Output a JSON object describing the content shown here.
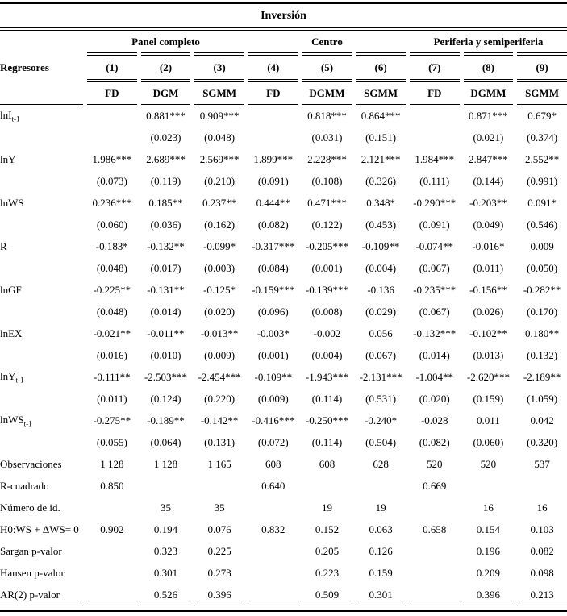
{
  "table": {
    "title": "Inversión",
    "regressors_label": "Regresores",
    "groups": [
      {
        "label": "Panel completo"
      },
      {
        "label": "Centro"
      },
      {
        "label": "Periferia y semiperiferia"
      }
    ],
    "column_numbers": [
      "(1)",
      "(2)",
      "(3)",
      "(4)",
      "(5)",
      "(6)",
      "(7)",
      "(8)",
      "(9)"
    ],
    "methods": [
      "FD",
      "DGM",
      "SGMM",
      "FD",
      "DGMM",
      "SGMM",
      "FD",
      "DGMM",
      "SGMM"
    ],
    "rows": [
      {
        "label": "lnI",
        "sub": "t-1",
        "type": "coef",
        "values": [
          "",
          "0.881***",
          "0.909***",
          "",
          "0.818***",
          "0.864***",
          "",
          "0.871***",
          "0.679*"
        ]
      },
      {
        "label": "",
        "sub": "",
        "type": "se",
        "values": [
          "",
          "(0.023)",
          "(0.048)",
          "",
          "(0.031)",
          "(0.151)",
          "",
          "(0.021)",
          "(0.374)"
        ]
      },
      {
        "label": "lnY",
        "sub": "",
        "type": "coef",
        "values": [
          "1.986***",
          "2.689***",
          "2.569***",
          "1.899***",
          "2.228***",
          "2.121***",
          "1.984***",
          "2.847***",
          "2.552**"
        ]
      },
      {
        "label": "",
        "sub": "",
        "type": "se",
        "values": [
          "(0.073)",
          "(0.119)",
          "(0.210)",
          "(0.091)",
          "(0.108)",
          "(0.326)",
          "(0.111)",
          "(0.144)",
          "(0.991)"
        ]
      },
      {
        "label": "lnWS",
        "sub": "",
        "type": "coef",
        "values": [
          "0.236***",
          "0.185**",
          "0.237**",
          "0.444**",
          "0.471***",
          "0.348*",
          "-0.290***",
          "-0.203**",
          "0.091*"
        ]
      },
      {
        "label": "",
        "sub": "",
        "type": "se",
        "values": [
          "(0.060)",
          "(0.036)",
          "(0.162)",
          "(0.082)",
          "(0.122)",
          "(0.453)",
          "(0.091)",
          "(0.049)",
          "(0.546)"
        ]
      },
      {
        "label": "R",
        "sub": "",
        "type": "coef",
        "values": [
          "-0.183*",
          "-0.132**",
          "-0.099*",
          "-0.317***",
          "-0.205***",
          "-0.109**",
          "-0.074**",
          "-0.016*",
          "0.009"
        ]
      },
      {
        "label": "",
        "sub": "",
        "type": "se",
        "values": [
          "(0.048)",
          "(0.017)",
          "(0.003)",
          "(0.084)",
          "(0.001)",
          "(0.004)",
          "(0.067)",
          "(0.011)",
          "(0.050)"
        ]
      },
      {
        "label": "lnGF",
        "sub": "",
        "type": "coef",
        "values": [
          "-0.225**",
          "-0.131**",
          "-0.125*",
          "-0.159***",
          "-0.139***",
          "-0.136",
          "-0.235***",
          "-0.156**",
          "-0.282**"
        ]
      },
      {
        "label": "",
        "sub": "",
        "type": "se",
        "values": [
          "(0.048)",
          "(0.014)",
          "(0.020)",
          "(0.096)",
          "(0.008)",
          "(0.029)",
          "(0.067)",
          "(0.026)",
          "(0.170)"
        ]
      },
      {
        "label": "lnEX",
        "sub": "",
        "type": "coef",
        "values": [
          "-0.021**",
          "-0.011**",
          "-0.013**",
          "-0.003*",
          "-0.002",
          "0.056",
          "-0.132***",
          "-0.102**",
          "0.180**"
        ]
      },
      {
        "label": "",
        "sub": "",
        "type": "se",
        "values": [
          "(0.016)",
          "(0.010)",
          "(0.009)",
          "(0.001)",
          "(0.004)",
          "(0.067)",
          "(0.014)",
          "(0.013)",
          "(0.132)"
        ]
      },
      {
        "label": "lnY",
        "sub": "t-1",
        "type": "coef",
        "values": [
          "-0.111**",
          "-2.503***",
          "-2.454***",
          "-0.109**",
          "-1.943***",
          "-2.131***",
          "-1.004**",
          "-2.620***",
          "-2.189**"
        ]
      },
      {
        "label": "",
        "sub": "",
        "type": "se",
        "values": [
          "(0.011)",
          "(0.124)",
          "(0.220)",
          "(0.009)",
          "(0.114)",
          "(0.531)",
          "(0.020)",
          "(0.159)",
          "(1.059)"
        ]
      },
      {
        "label": "lnWS",
        "sub": "t-1",
        "type": "coef",
        "values": [
          "-0.275**",
          "-0.189**",
          "-0.142**",
          "-0.416***",
          "-0.250***",
          "-0.240*",
          "-0.028",
          "0.011",
          "0.042"
        ]
      },
      {
        "label": "",
        "sub": "",
        "type": "se",
        "values": [
          "(0.055)",
          "(0.064)",
          "(0.131)",
          "(0.072)",
          "(0.114)",
          "(0.504)",
          "(0.082)",
          "(0.060)",
          "(0.320)"
        ]
      },
      {
        "label": "Observaciones",
        "sub": "",
        "type": "stat",
        "values": [
          "1 128",
          "1 128",
          "1 165",
          "608",
          "608",
          "628",
          "520",
          "520",
          "537"
        ]
      },
      {
        "label": "R-cuadrado",
        "sub": "",
        "type": "stat",
        "values": [
          "0.850",
          "",
          "",
          "0.640",
          "",
          "",
          "0.669",
          "",
          ""
        ]
      },
      {
        "label": "Número de id.",
        "sub": "",
        "type": "stat",
        "values": [
          "",
          "35",
          "35",
          "",
          "19",
          "19",
          "",
          "16",
          "16"
        ]
      },
      {
        "label": "H0:WS + ΔWS= 0",
        "sub": "",
        "type": "stat",
        "values": [
          "0.902",
          "0.194",
          "0.076",
          "0.832",
          "0.152",
          "0.063",
          "0.658",
          "0.154",
          "0.103"
        ]
      },
      {
        "label": "Sargan p-valor",
        "sub": "",
        "type": "stat",
        "values": [
          "",
          "0.323",
          "0.225",
          "",
          "0.205",
          "0.126",
          "",
          "0.196",
          "0.082"
        ]
      },
      {
        "label": "Hansen p-valor",
        "sub": "",
        "type": "stat",
        "values": [
          "",
          "0.301",
          "0.273",
          "",
          "0.223",
          "0.159",
          "",
          "0.209",
          "0.098"
        ]
      },
      {
        "label": "AR(2) p-valor",
        "sub": "",
        "type": "stat",
        "values": [
          "",
          "0.526",
          "0.396",
          "",
          "0.509",
          "0.301",
          "",
          "0.396",
          "0.213"
        ]
      }
    ]
  }
}
